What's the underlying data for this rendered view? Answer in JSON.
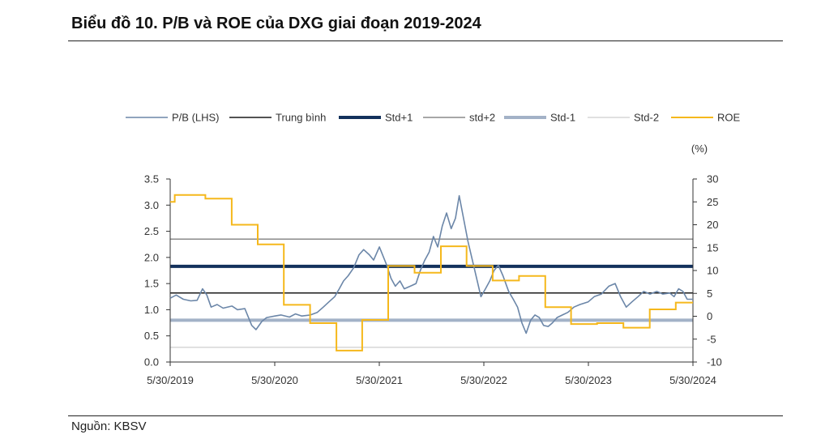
{
  "title": "Biểu đồ 10. P/B và ROE của DXG giai đoạn 2019-2024",
  "source": "Nguồn: KBSV",
  "chart_data": {
    "type": "line",
    "right_unit": "(%)",
    "x_tick_labels": [
      "5/30/2019",
      "5/30/2020",
      "5/30/2021",
      "5/30/2022",
      "5/30/2023",
      "5/30/2024"
    ],
    "x_range": [
      "2019-05-30",
      "2024-05-30"
    ],
    "left_axis": {
      "ylim": [
        0,
        3.5
      ],
      "ticks": [
        "0.0",
        "0.5",
        "1.0",
        "1.5",
        "2.0",
        "2.5",
        "3.0",
        "3.5"
      ]
    },
    "right_axis": {
      "ylim": [
        -10,
        30
      ],
      "ticks": [
        "-10",
        "-5",
        "0",
        "5",
        "10",
        "15",
        "20",
        "25",
        "30"
      ]
    },
    "legend": [
      {
        "name": "P/B (LHS)",
        "color": "#6b86a8",
        "width": 1.5
      },
      {
        "name": "Trung bình",
        "color": "#1a1a1a",
        "width": 1.5
      },
      {
        "name": "Std+1",
        "color": "#13315c",
        "width": 4
      },
      {
        "name": "std+2",
        "color": "#8a8a8a",
        "width": 1.5
      },
      {
        "name": "Std-1",
        "color": "#a3b2c7",
        "width": 4
      },
      {
        "name": "Std-2",
        "color": "#d6d6d6",
        "width": 1.5
      },
      {
        "name": "ROE",
        "color": "#f5b81c",
        "width": 2
      }
    ],
    "reference_lines": [
      {
        "name": "Trung bình",
        "value": 1.32
      },
      {
        "name": "Std+1",
        "value": 1.83
      },
      {
        "name": "std+2",
        "value": 2.35
      },
      {
        "name": "Std-1",
        "value": 0.8
      },
      {
        "name": "Std-2",
        "value": 0.28
      }
    ],
    "pb_series": {
      "name": "P/B (LHS)",
      "x": [
        "2019-05-30",
        "2019-06-20",
        "2019-07-15",
        "2019-08-10",
        "2019-09-01",
        "2019-09-20",
        "2019-10-05",
        "2019-10-20",
        "2019-11-10",
        "2019-12-01",
        "2020-01-01",
        "2020-01-20",
        "2020-02-15",
        "2020-03-10",
        "2020-03-25",
        "2020-04-15",
        "2020-05-01",
        "2020-05-30",
        "2020-06-20",
        "2020-07-20",
        "2020-08-10",
        "2020-09-01",
        "2020-10-01",
        "2020-10-25",
        "2020-11-15",
        "2020-12-05",
        "2020-12-25",
        "2021-01-10",
        "2021-01-25",
        "2021-02-10",
        "2021-03-01",
        "2021-03-20",
        "2021-04-05",
        "2021-04-25",
        "2021-05-10",
        "2021-05-30",
        "2021-06-10",
        "2021-06-25",
        "2021-07-10",
        "2021-07-25",
        "2021-08-10",
        "2021-08-25",
        "2021-09-15",
        "2021-10-05",
        "2021-10-20",
        "2021-11-05",
        "2021-11-20",
        "2021-12-05",
        "2021-12-20",
        "2022-01-05",
        "2022-01-20",
        "2022-02-05",
        "2022-02-20",
        "2022-03-05",
        "2022-03-20",
        "2022-04-05",
        "2022-04-20",
        "2022-05-05",
        "2022-05-20",
        "2022-06-05",
        "2022-06-20",
        "2022-07-05",
        "2022-07-20",
        "2022-08-05",
        "2022-08-25",
        "2022-09-10",
        "2022-09-25",
        "2022-10-10",
        "2022-10-25",
        "2022-11-10",
        "2022-11-25",
        "2022-12-10",
        "2022-12-25",
        "2023-01-10",
        "2023-01-25",
        "2023-02-10",
        "2023-03-01",
        "2023-03-20",
        "2023-04-10",
        "2023-05-01",
        "2023-05-30",
        "2023-06-20",
        "2023-07-15",
        "2023-08-10",
        "2023-09-01",
        "2023-09-20",
        "2023-10-10",
        "2023-10-30",
        "2023-11-20",
        "2023-12-10",
        "2024-01-01",
        "2024-01-25",
        "2024-02-15",
        "2024-03-10",
        "2024-03-25",
        "2024-04-10",
        "2024-04-25",
        "2024-05-10",
        "2024-05-30"
      ],
      "y": [
        1.22,
        1.28,
        1.2,
        1.17,
        1.18,
        1.4,
        1.28,
        1.05,
        1.1,
        1.03,
        1.07,
        1.0,
        1.02,
        0.7,
        0.62,
        0.78,
        0.85,
        0.88,
        0.9,
        0.86,
        0.92,
        0.88,
        0.9,
        0.95,
        1.05,
        1.15,
        1.25,
        1.4,
        1.55,
        1.65,
        1.8,
        2.05,
        2.15,
        2.05,
        1.95,
        2.2,
        2.05,
        1.85,
        1.6,
        1.45,
        1.55,
        1.4,
        1.45,
        1.5,
        1.75,
        1.95,
        2.1,
        2.4,
        2.2,
        2.6,
        2.85,
        2.55,
        2.75,
        3.18,
        2.75,
        2.3,
        1.95,
        1.6,
        1.25,
        1.4,
        1.55,
        1.75,
        1.85,
        1.65,
        1.35,
        1.2,
        1.05,
        0.75,
        0.55,
        0.8,
        0.9,
        0.85,
        0.7,
        0.68,
        0.75,
        0.85,
        0.9,
        0.95,
        1.05,
        1.1,
        1.15,
        1.25,
        1.3,
        1.45,
        1.5,
        1.25,
        1.05,
        1.15,
        1.25,
        1.35,
        1.3,
        1.35,
        1.3,
        1.32,
        1.25,
        1.4,
        1.35,
        1.2,
        1.2
      ]
    },
    "roe_series": {
      "name": "ROE",
      "steps": [
        {
          "x": "2019-05-30",
          "y": 25
        },
        {
          "x": "2019-06-15",
          "y": 26.5
        },
        {
          "x": "2019-09-30",
          "y": 25.7
        },
        {
          "x": "2019-12-31",
          "y": 20
        },
        {
          "x": "2020-03-31",
          "y": 15.7
        },
        {
          "x": "2020-06-30",
          "y": 2.5
        },
        {
          "x": "2020-09-30",
          "y": -1.5
        },
        {
          "x": "2020-12-31",
          "y": -7.5
        },
        {
          "x": "2021-03-31",
          "y": -0.8
        },
        {
          "x": "2021-06-30",
          "y": 11
        },
        {
          "x": "2021-09-30",
          "y": 9.5
        },
        {
          "x": "2021-12-31",
          "y": 15.3
        },
        {
          "x": "2022-03-31",
          "y": 11
        },
        {
          "x": "2022-06-30",
          "y": 7.8
        },
        {
          "x": "2022-09-30",
          "y": 8.8
        },
        {
          "x": "2022-12-31",
          "y": 2
        },
        {
          "x": "2023-03-31",
          "y": -1.7
        },
        {
          "x": "2023-06-30",
          "y": -1.5
        },
        {
          "x": "2023-09-30",
          "y": -2.5
        },
        {
          "x": "2023-12-31",
          "y": 1.5
        },
        {
          "x": "2024-03-31",
          "y": 3
        }
      ],
      "end_x": "2024-05-30"
    }
  }
}
